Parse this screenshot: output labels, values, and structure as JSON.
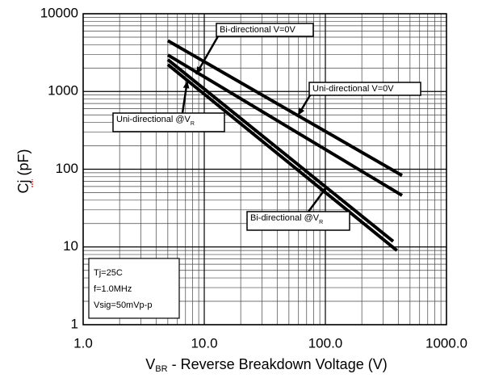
{
  "chart_data": {
    "type": "line",
    "xlabel": {
      "main": "V",
      "sub": "BR",
      "rest": " - Reverse Breakdown Voltage (V)"
    },
    "ylabel": "Cj (pF)",
    "xscale": "log",
    "yscale": "log",
    "xlim": [
      1,
      1000
    ],
    "ylim": [
      1,
      10000
    ],
    "xticks": [
      {
        "value": 1,
        "label": "1.0"
      },
      {
        "value": 10,
        "label": "10.0"
      },
      {
        "value": 100,
        "label": "100.0"
      },
      {
        "value": 1000,
        "label": "1000.0"
      }
    ],
    "yticks": [
      1,
      10,
      100,
      1000,
      10000
    ],
    "grid": true,
    "minor_grid": true,
    "series": [
      {
        "name": "Uni-directional  V=0V",
        "color": "#000000",
        "x": [
          5,
          430
        ],
        "values": [
          4500,
          83
        ]
      },
      {
        "name": "Bi-directional  V=0V",
        "color": "#000000",
        "x": [
          5,
          430
        ],
        "values": [
          2950,
          46
        ]
      },
      {
        "name": "Bi-directional  @V",
        "name_sub": "R",
        "color": "#000000",
        "x": [
          5,
          363
        ],
        "values": [
          2570,
          11.8
        ]
      },
      {
        "name": "Uni-directional  @V",
        "name_sub": "R",
        "color": "#000000",
        "x": [
          5,
          390
        ],
        "values": [
          2220,
          9
        ]
      }
    ],
    "conditions": [
      "Tj=25C",
      "f=1.0MHz",
      "Vsig=50mVp-p"
    ]
  }
}
